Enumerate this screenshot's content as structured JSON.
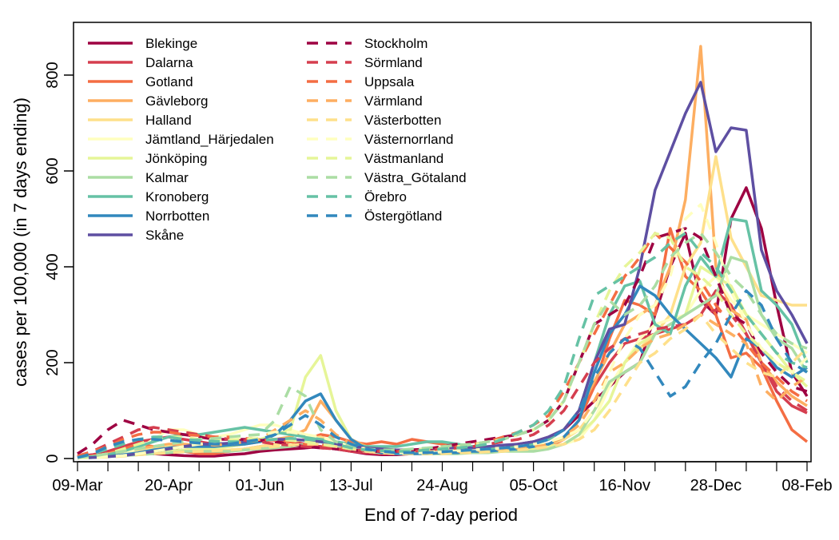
{
  "chart_data": {
    "type": "line",
    "title": "",
    "xlabel": "End of 7-day period",
    "ylabel": "cases per 100,000 (in 7 days ending)",
    "ylim": [
      0,
      880
    ],
    "yticks": [
      0,
      200,
      400,
      600,
      800
    ],
    "x_tick_labels": [
      "09-Mar",
      "20-Apr",
      "01-Jun",
      "13-Jul",
      "24-Aug",
      "05-Oct",
      "16-Nov",
      "28-Dec",
      "08-Feb"
    ],
    "x_weeks": 49,
    "label_every_weeks": 6,
    "legend_position": "top-left",
    "series": [
      {
        "name": "Blekinge",
        "color": "#9E0142",
        "dash": false,
        "values": [
          5,
          8,
          10,
          12,
          15,
          10,
          8,
          6,
          5,
          5,
          8,
          10,
          15,
          18,
          20,
          22,
          25,
          20,
          15,
          10,
          8,
          8,
          10,
          12,
          15,
          15,
          18,
          20,
          25,
          30,
          35,
          45,
          60,
          90,
          120,
          150,
          180,
          200,
          300,
          400,
          470,
          330,
          300,
          500,
          565,
          480,
          320,
          180,
          130
        ]
      },
      {
        "name": "Dalarna",
        "color": "#D53E4F",
        "dash": false,
        "values": [
          3,
          8,
          15,
          25,
          35,
          40,
          45,
          40,
          35,
          30,
          30,
          35,
          40,
          40,
          35,
          30,
          25,
          20,
          15,
          12,
          10,
          10,
          12,
          15,
          15,
          15,
          15,
          18,
          20,
          25,
          30,
          40,
          60,
          100,
          150,
          200,
          240,
          250,
          260,
          270,
          280,
          300,
          350,
          320,
          260,
          200,
          140,
          110,
          95
        ]
      },
      {
        "name": "Gotland",
        "color": "#F46D43",
        "dash": false,
        "values": [
          2,
          5,
          10,
          20,
          30,
          25,
          20,
          15,
          10,
          10,
          15,
          20,
          25,
          30,
          35,
          40,
          50,
          45,
          35,
          30,
          35,
          30,
          40,
          35,
          30,
          25,
          20,
          20,
          20,
          20,
          20,
          25,
          40,
          80,
          150,
          250,
          330,
          320,
          300,
          480,
          380,
          350,
          300,
          210,
          220,
          190,
          120,
          60,
          35
        ]
      },
      {
        "name": "Gävleborg",
        "color": "#FDAE61",
        "dash": false,
        "values": [
          2,
          5,
          10,
          15,
          20,
          25,
          30,
          30,
          28,
          25,
          25,
          30,
          35,
          40,
          45,
          60,
          120,
          80,
          40,
          25,
          20,
          18,
          15,
          15,
          15,
          15,
          15,
          18,
          20,
          25,
          30,
          40,
          60,
          100,
          160,
          220,
          280,
          300,
          320,
          400,
          540,
          860,
          400,
          310,
          290,
          200,
          160,
          130,
          110
        ]
      },
      {
        "name": "Halland",
        "color": "#FEE08B",
        "dash": false,
        "values": [
          2,
          4,
          6,
          10,
          15,
          20,
          25,
          25,
          20,
          18,
          18,
          20,
          25,
          30,
          35,
          40,
          45,
          30,
          20,
          15,
          12,
          10,
          10,
          10,
          12,
          12,
          14,
          15,
          18,
          20,
          25,
          30,
          40,
          60,
          100,
          150,
          200,
          230,
          260,
          300,
          400,
          450,
          630,
          460,
          400,
          340,
          330,
          320,
          320
        ]
      },
      {
        "name": "Jämtland_Härjedalen",
        "color": "#FFFFBF",
        "dash": false,
        "values": [
          1,
          3,
          5,
          10,
          20,
          40,
          60,
          60,
          50,
          45,
          50,
          60,
          70,
          70,
          60,
          50,
          40,
          30,
          20,
          15,
          12,
          10,
          10,
          12,
          15,
          18,
          20,
          20,
          20,
          20,
          20,
          25,
          30,
          40,
          80,
          150,
          200,
          250,
          280,
          290,
          300,
          350,
          380,
          330,
          300,
          280,
          260,
          240,
          220
        ]
      },
      {
        "name": "Jönköping",
        "color": "#E6F598",
        "dash": false,
        "values": [
          2,
          4,
          6,
          8,
          10,
          12,
          15,
          18,
          20,
          22,
          25,
          30,
          40,
          50,
          60,
          170,
          215,
          100,
          40,
          20,
          15,
          12,
          10,
          10,
          10,
          12,
          12,
          15,
          15,
          18,
          20,
          25,
          30,
          50,
          80,
          120,
          200,
          240,
          260,
          280,
          300,
          400,
          380,
          360,
          300,
          260,
          220,
          180,
          150
        ]
      },
      {
        "name": "Kalmar",
        "color": "#ABDDA4",
        "dash": false,
        "values": [
          1,
          2,
          4,
          6,
          8,
          10,
          12,
          15,
          15,
          15,
          15,
          18,
          20,
          22,
          25,
          30,
          35,
          25,
          20,
          15,
          12,
          10,
          10,
          10,
          10,
          10,
          12,
          12,
          15,
          15,
          15,
          20,
          30,
          50,
          100,
          160,
          180,
          200,
          260,
          280,
          300,
          320,
          340,
          420,
          410,
          300,
          250,
          230,
          180
        ]
      },
      {
        "name": "Kronoberg",
        "color": "#66C2A5",
        "dash": false,
        "values": [
          2,
          4,
          8,
          15,
          25,
          35,
          45,
          50,
          50,
          55,
          60,
          65,
          60,
          55,
          50,
          45,
          40,
          35,
          30,
          25,
          25,
          25,
          30,
          35,
          35,
          30,
          25,
          20,
          20,
          25,
          30,
          40,
          60,
          100,
          200,
          300,
          360,
          370,
          280,
          260,
          360,
          420,
          380,
          500,
          495,
          350,
          320,
          280,
          200
        ]
      },
      {
        "name": "Norrbotten",
        "color": "#3288BD",
        "dash": false,
        "values": [
          1,
          2,
          4,
          8,
          12,
          18,
          22,
          25,
          25,
          25,
          28,
          30,
          35,
          50,
          80,
          120,
          135,
          80,
          40,
          20,
          12,
          10,
          10,
          10,
          12,
          12,
          15,
          15,
          18,
          20,
          25,
          30,
          45,
          80,
          180,
          260,
          300,
          360,
          340,
          300,
          270,
          240,
          210,
          170,
          250,
          230,
          190,
          170,
          190
        ]
      },
      {
        "name": "Skåne",
        "color": "#5E4FA2",
        "dash": false,
        "values": [
          1,
          2,
          4,
          6,
          10,
          15,
          20,
          25,
          30,
          30,
          32,
          35,
          38,
          40,
          40,
          38,
          35,
          30,
          25,
          22,
          20,
          18,
          18,
          20,
          22,
          22,
          22,
          25,
          28,
          30,
          35,
          45,
          60,
          100,
          200,
          270,
          280,
          400,
          560,
          640,
          720,
          785,
          640,
          690,
          685,
          435,
          350,
          300,
          240
        ]
      },
      {
        "name": "Stockholm",
        "color": "#9E0142",
        "dash": true,
        "values": [
          10,
          30,
          60,
          80,
          70,
          60,
          55,
          50,
          45,
          40,
          40,
          40,
          38,
          35,
          30,
          25,
          22,
          20,
          18,
          15,
          15,
          15,
          18,
          20,
          25,
          30,
          35,
          40,
          45,
          50,
          60,
          80,
          120,
          200,
          280,
          300,
          320,
          380,
          460,
          470,
          480,
          460,
          380,
          300,
          280,
          220,
          180,
          150,
          140
        ]
      },
      {
        "name": "Sörmland",
        "color": "#D53E4F",
        "dash": true,
        "values": [
          5,
          15,
          30,
          45,
          60,
          65,
          60,
          55,
          50,
          45,
          40,
          38,
          35,
          30,
          28,
          25,
          22,
          20,
          18,
          16,
          15,
          15,
          15,
          18,
          20,
          22,
          25,
          30,
          35,
          40,
          50,
          70,
          100,
          150,
          200,
          230,
          250,
          260,
          270,
          275,
          280,
          300,
          310,
          300,
          260,
          200,
          150,
          120,
          100
        ]
      },
      {
        "name": "Uppsala",
        "color": "#F46D43",
        "dash": true,
        "values": [
          5,
          15,
          25,
          40,
          50,
          55,
          55,
          50,
          48,
          45,
          45,
          42,
          40,
          38,
          35,
          30,
          28,
          25,
          20,
          18,
          16,
          15,
          15,
          18,
          20,
          25,
          30,
          35,
          45,
          55,
          70,
          90,
          140,
          200,
          260,
          320,
          380,
          420,
          470,
          440,
          410,
          370,
          320,
          280,
          240,
          200,
          170,
          140,
          120
        ]
      },
      {
        "name": "Värmland",
        "color": "#FDAE61",
        "dash": true,
        "values": [
          2,
          5,
          10,
          15,
          20,
          25,
          28,
          30,
          30,
          28,
          30,
          35,
          40,
          60,
          80,
          100,
          80,
          50,
          30,
          20,
          15,
          12,
          12,
          12,
          12,
          14,
          16,
          18,
          20,
          22,
          25,
          30,
          45,
          70,
          120,
          180,
          200,
          230,
          250,
          260,
          280,
          300,
          280,
          260,
          240,
          150,
          120,
          150,
          170
        ]
      },
      {
        "name": "Västerbotten",
        "color": "#FEE08B",
        "dash": true,
        "values": [
          1,
          2,
          3,
          5,
          8,
          10,
          12,
          14,
          15,
          16,
          18,
          20,
          22,
          25,
          28,
          30,
          30,
          25,
          20,
          15,
          12,
          10,
          10,
          10,
          10,
          12,
          12,
          14,
          15,
          18,
          20,
          25,
          30,
          40,
          60,
          100,
          150,
          200,
          220,
          250,
          270,
          300,
          260,
          230,
          200,
          180,
          170,
          200,
          230
        ]
      },
      {
        "name": "Västernorrland",
        "color": "#FFFFBF",
        "dash": true,
        "values": [
          1,
          2,
          4,
          6,
          10,
          15,
          20,
          25,
          30,
          35,
          40,
          45,
          50,
          55,
          55,
          50,
          45,
          35,
          25,
          20,
          15,
          12,
          12,
          12,
          14,
          16,
          18,
          20,
          22,
          25,
          30,
          35,
          45,
          60,
          100,
          180,
          250,
          300,
          320,
          380,
          500,
          530,
          450,
          350,
          280,
          230,
          200,
          180,
          210
        ]
      },
      {
        "name": "Västmanland",
        "color": "#E6F598",
        "dash": true,
        "values": [
          2,
          5,
          10,
          20,
          30,
          40,
          45,
          45,
          40,
          38,
          38,
          40,
          42,
          40,
          38,
          35,
          30,
          25,
          20,
          18,
          16,
          16,
          18,
          20,
          22,
          25,
          30,
          35,
          40,
          50,
          60,
          80,
          120,
          200,
          280,
          350,
          400,
          430,
          470,
          460,
          400,
          380,
          350,
          300,
          260,
          230,
          200,
          180,
          160
        ]
      },
      {
        "name": "Västra_Götaland",
        "color": "#ABDDA4",
        "dash": true,
        "values": [
          2,
          5,
          10,
          15,
          20,
          25,
          30,
          35,
          40,
          42,
          45,
          48,
          50,
          80,
          150,
          130,
          60,
          35,
          25,
          20,
          18,
          18,
          20,
          22,
          25,
          28,
          30,
          35,
          40,
          50,
          60,
          80,
          120,
          200,
          280,
          330,
          300,
          320,
          360,
          420,
          450,
          470,
          430,
          380,
          350,
          300,
          260,
          240,
          230
        ]
      },
      {
        "name": "Örebro",
        "color": "#66C2A5",
        "dash": true,
        "values": [
          2,
          10,
          20,
          30,
          40,
          45,
          45,
          40,
          38,
          36,
          35,
          35,
          38,
          40,
          42,
          40,
          38,
          30,
          22,
          18,
          16,
          15,
          15,
          18,
          20,
          22,
          25,
          30,
          40,
          55,
          70,
          100,
          150,
          250,
          340,
          360,
          380,
          400,
          420,
          450,
          470,
          430,
          400,
          350,
          300,
          260,
          220,
          200,
          190
        ]
      },
      {
        "name": "Östergötland",
        "color": "#3288BD",
        "dash": true,
        "values": [
          2,
          10,
          25,
          35,
          40,
          40,
          38,
          35,
          32,
          30,
          30,
          35,
          40,
          50,
          70,
          90,
          70,
          45,
          30,
          20,
          15,
          12,
          12,
          12,
          14,
          16,
          18,
          20,
          22,
          25,
          30,
          40,
          60,
          100,
          170,
          220,
          250,
          230,
          180,
          130,
          150,
          200,
          240,
          300,
          350,
          320,
          250,
          200,
          180
        ]
      }
    ]
  }
}
